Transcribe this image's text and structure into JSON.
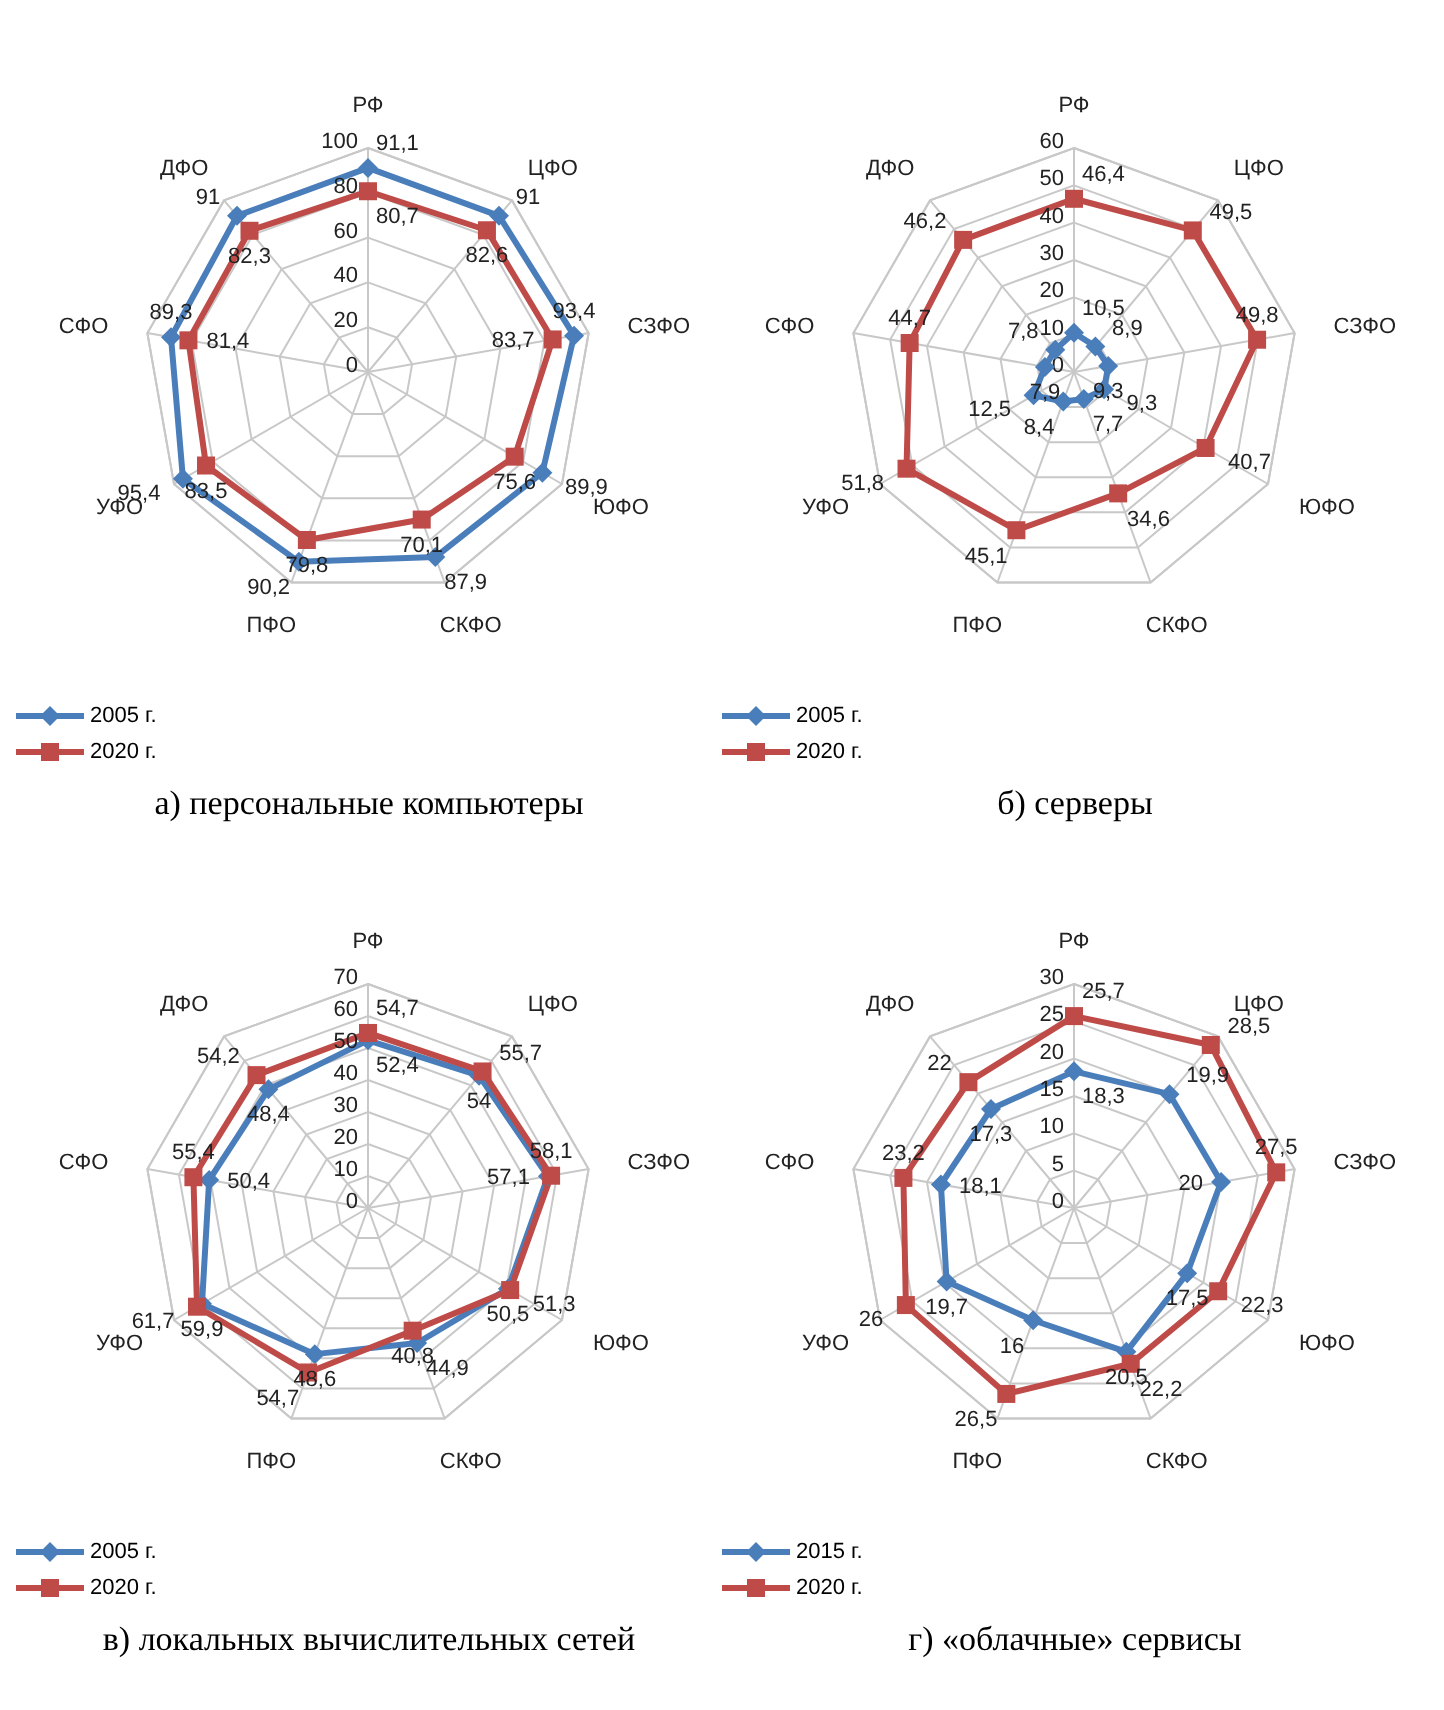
{
  "chart_data": [
    {
      "type": "radar",
      "title": "а) персональные компьютеры",
      "categories": [
        "РФ",
        "ЦФО",
        "СЗФО",
        "ЮФО",
        "СКФО",
        "ПФО",
        "УФО",
        "СФО",
        "ДФО"
      ],
      "ylim": [
        0,
        100
      ],
      "yticks": [
        0,
        20,
        40,
        60,
        80,
        100
      ],
      "grid": true,
      "legend": "bottom left",
      "series": [
        {
          "name": "2005 г.",
          "color": "#4a7ebb",
          "marker": "diamond",
          "values": [
            91.1,
            91,
            93.4,
            89.9,
            87.9,
            90.2,
            95.4,
            89.3,
            91
          ],
          "value_labels": [
            "91,1",
            "91",
            "93,4",
            "89,9",
            "87,9",
            "90,2",
            "95,4",
            "89,3",
            "91"
          ]
        },
        {
          "name": "2020 г.",
          "color": "#be4b48",
          "marker": "square",
          "values": [
            80.7,
            82.6,
            83.7,
            75.6,
            70.1,
            79.8,
            83.5,
            81.4,
            82.3
          ],
          "value_labels": [
            "80,7",
            "82,6",
            "83,7",
            "75,6",
            "70,1",
            "79,8",
            "83,5",
            "81,4",
            "82,3"
          ]
        }
      ]
    },
    {
      "type": "radar",
      "title": "б) серверы",
      "categories": [
        "РФ",
        "ЦФО",
        "СЗФО",
        "ЮФО",
        "СКФО",
        "ПФО",
        "УФО",
        "СФО",
        "ДФО"
      ],
      "ylim": [
        0,
        60
      ],
      "yticks": [
        0,
        10,
        20,
        30,
        40,
        50,
        60
      ],
      "grid": true,
      "legend": "bottom left",
      "series": [
        {
          "name": "2005 г.",
          "color": "#4a7ebb",
          "marker": "diamond",
          "values": [
            10.5,
            8.9,
            9.3,
            9.3,
            7.7,
            8.4,
            12.5,
            7.9,
            7.8
          ],
          "value_labels": [
            "10,5",
            "8,9",
            "9,3",
            "9,3",
            "7,7",
            "8,4",
            "12,5",
            "7,9",
            "7,8"
          ]
        },
        {
          "name": "2020 г.",
          "color": "#be4b48",
          "marker": "square",
          "values": [
            46.4,
            49.5,
            49.8,
            40.7,
            34.6,
            45.1,
            51.8,
            44.7,
            46.2
          ],
          "value_labels": [
            "46,4",
            "49,5",
            "49,8",
            "40,7",
            "34,6",
            "45,1",
            "51,8",
            "44,7",
            "46,2"
          ]
        }
      ]
    },
    {
      "type": "radar",
      "title": "в) локальных вычислительных сетей",
      "categories": [
        "РФ",
        "ЦФО",
        "СЗФО",
        "ЮФО",
        "СКФО",
        "ПФО",
        "УФО",
        "СФО",
        "ДФО"
      ],
      "ylim": [
        0,
        70
      ],
      "yticks": [
        0,
        10,
        20,
        30,
        40,
        50,
        60,
        70
      ],
      "grid": true,
      "legend": "bottom left",
      "series": [
        {
          "name": "2005 г.",
          "color": "#4a7ebb",
          "marker": "diamond",
          "values": [
            52.4,
            54,
            57.1,
            50.5,
            44.9,
            48.6,
            59.9,
            50.4,
            48.4
          ],
          "value_labels": [
            "52,4",
            "54",
            "57,1",
            "50,5",
            "44,9",
            "48,6",
            "59,9",
            "50,4",
            "48,4"
          ]
        },
        {
          "name": "2020 г.",
          "color": "#be4b48",
          "marker": "square",
          "values": [
            54.7,
            55.7,
            58.1,
            51.3,
            40.8,
            54.7,
            61.7,
            55.4,
            54.2
          ],
          "value_labels": [
            "54,7",
            "55,7",
            "58,1",
            "51,3",
            "40,8",
            "54,7",
            "61,7",
            "55,4",
            "54,2"
          ]
        }
      ]
    },
    {
      "type": "radar",
      "title": "г) «облачные» сервисы",
      "categories": [
        "РФ",
        "ЦФО",
        "СЗФО",
        "ЮФО",
        "СКФО",
        "ПФО",
        "УФО",
        "СФО",
        "ДФО"
      ],
      "ylim": [
        0,
        30
      ],
      "yticks": [
        0,
        5,
        10,
        15,
        20,
        25,
        30
      ],
      "grid": true,
      "legend": "bottom left",
      "series": [
        {
          "name": "2015 г.",
          "color": "#4a7ebb",
          "marker": "diamond",
          "values": [
            18.3,
            19.9,
            20,
            17.5,
            20.5,
            16,
            19.7,
            18.1,
            17.3
          ],
          "value_labels": [
            "18,3",
            "19,9",
            "20",
            "17,5",
            "20,5",
            "16",
            "19,7",
            "18,1",
            "17,3"
          ]
        },
        {
          "name": "2020 г.",
          "color": "#be4b48",
          "marker": "square",
          "values": [
            25.7,
            28.5,
            27.5,
            22.3,
            22.2,
            26.5,
            26,
            23.2,
            22
          ],
          "value_labels": [
            "25,7",
            "28,5",
            "27,5",
            "22,3",
            "22,2",
            "26,5",
            "26",
            "23,2",
            "22"
          ]
        }
      ]
    }
  ]
}
